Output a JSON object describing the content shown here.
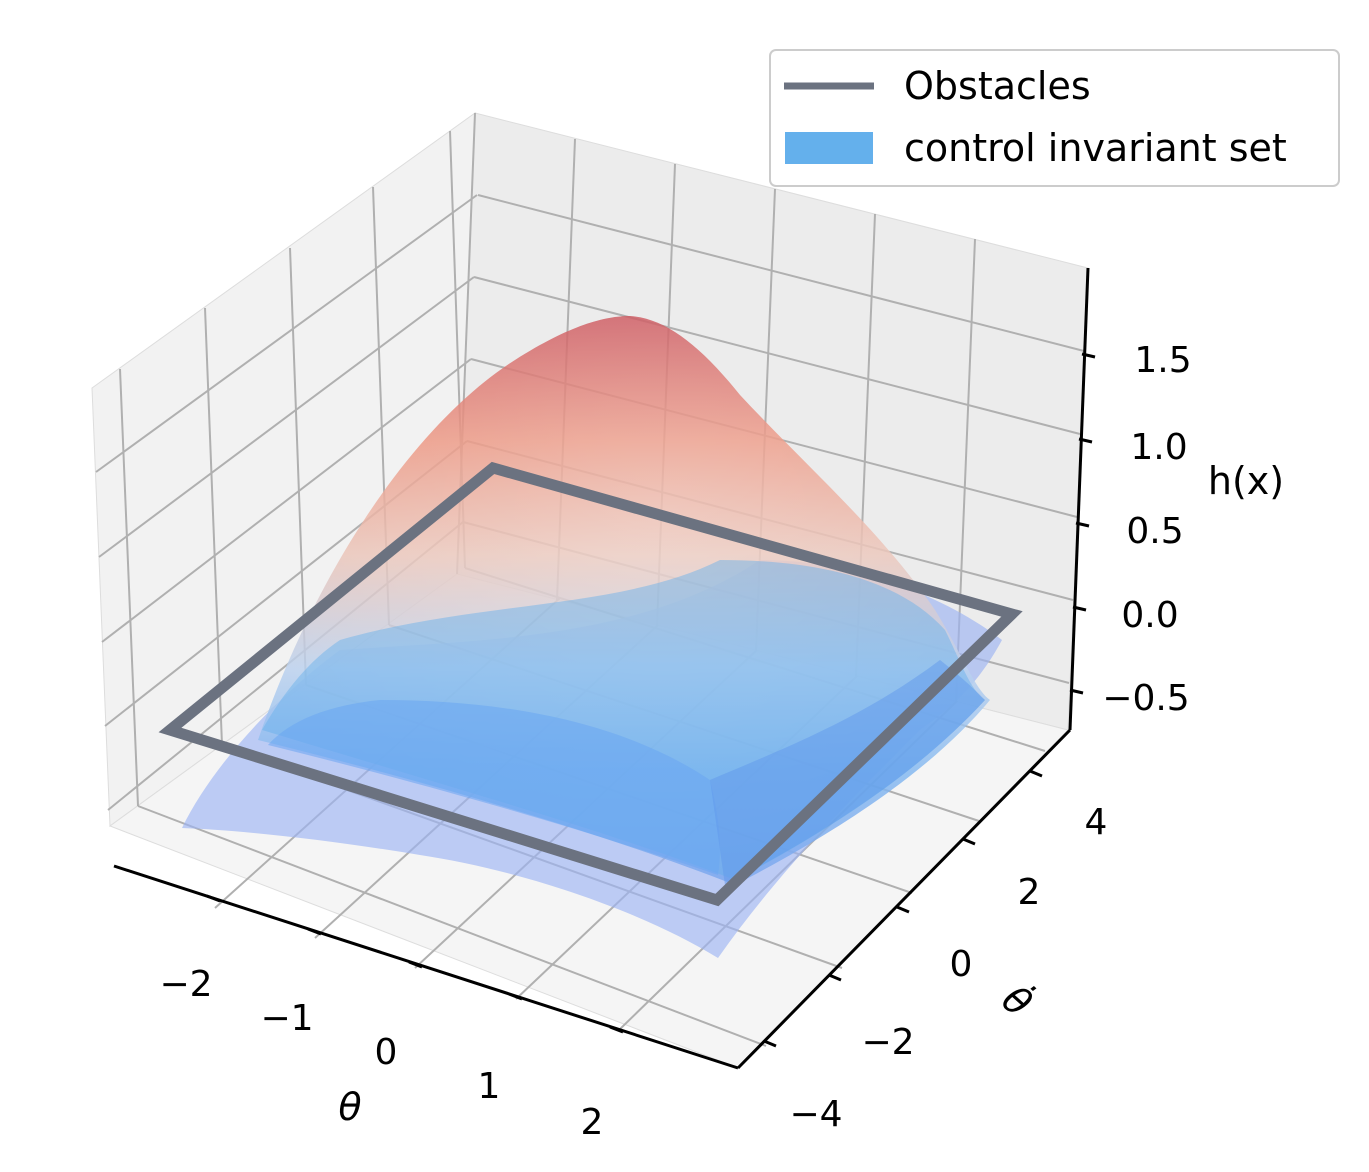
{
  "chart_data": {
    "type": "surface3d",
    "xlabel": "θ",
    "ylabel": "θ̇",
    "zlabel": "h(x)",
    "x_ticks": [
      "−2",
      "−1",
      "0",
      "1",
      "2"
    ],
    "y_ticks": [
      "−4",
      "−2",
      "0",
      "2",
      "4"
    ],
    "z_ticks": [
      "−0.5",
      "0.0",
      "0.5",
      "1.0",
      "1.5"
    ],
    "xlim": [
      -2.8,
      2.8
    ],
    "ylim": [
      -5,
      5
    ],
    "zlim": [
      -0.7,
      1.9
    ],
    "z_peak": 1.75,
    "grid": true,
    "legend_position": "top-right",
    "legend": [
      {
        "label": "Obstacles",
        "kind": "line",
        "color": "#6b7280"
      },
      {
        "label": "control invariant set",
        "kind": "patch",
        "color": "#64b0ec"
      }
    ],
    "series": [
      {
        "name": "Obstacles",
        "type": "rectangle",
        "x": [
          -2.5,
          2.5
        ],
        "y": [
          -4.5,
          4.5
        ],
        "z": 0.0
      }
    ],
    "colormap": "coolwarm"
  }
}
